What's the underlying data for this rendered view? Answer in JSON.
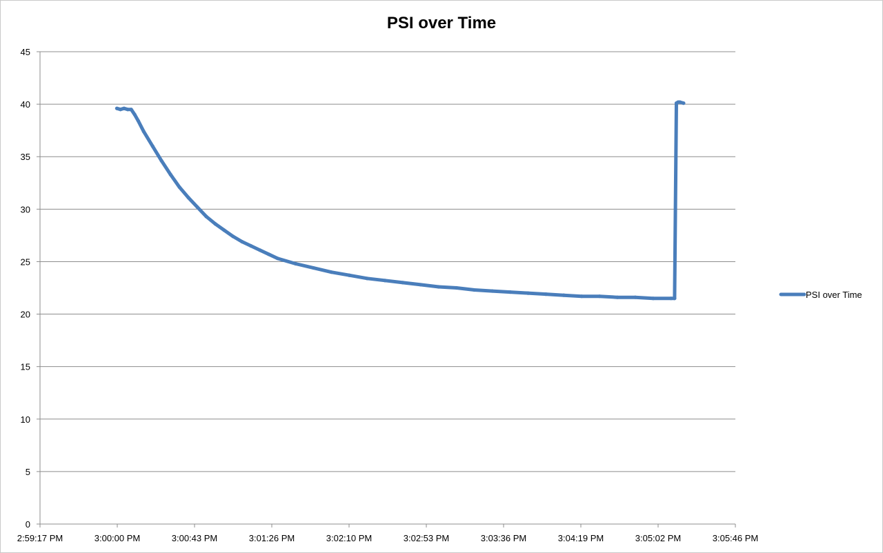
{
  "chart_data": {
    "type": "line",
    "title": "PSI over Time",
    "xlabel": "",
    "ylabel": "",
    "ylim": [
      0,
      45
    ],
    "xlim": [
      "2:59:17 PM",
      "3:05:46 PM"
    ],
    "y_ticks": [
      "0",
      "5",
      "10",
      "15",
      "20",
      "25",
      "30",
      "35",
      "40",
      "45"
    ],
    "x_ticks": [
      "2:59:17 PM",
      "3:00:00 PM",
      "3:00:43 PM",
      "3:01:26 PM",
      "3:02:10 PM",
      "3:02:53 PM",
      "3:03:36 PM",
      "3:04:19 PM",
      "3:05:02 PM",
      "3:05:46 PM"
    ],
    "grid": "horizontal",
    "legend_position": "right",
    "series": [
      {
        "name": "PSI over Time",
        "color": "#4a7ebb",
        "x": [
          "3:00:00 PM",
          "3:00:02 PM",
          "3:00:04 PM",
          "3:00:06 PM",
          "3:00:08 PM",
          "3:00:10 PM",
          "3:00:12 PM",
          "3:00:15 PM",
          "3:00:20 PM",
          "3:00:25 PM",
          "3:00:30 PM",
          "3:00:35 PM",
          "3:00:40 PM",
          "3:00:45 PM",
          "3:00:50 PM",
          "3:00:55 PM",
          "3:01:00 PM",
          "3:01:05 PM",
          "3:01:10 PM",
          "3:01:15 PM",
          "3:01:20 PM",
          "3:01:25 PM",
          "3:01:30 PM",
          "3:01:40 PM",
          "3:01:50 PM",
          "3:02:00 PM",
          "3:02:10 PM",
          "3:02:20 PM",
          "3:02:30 PM",
          "3:02:40 PM",
          "3:02:50 PM",
          "3:03:00 PM",
          "3:03:10 PM",
          "3:03:20 PM",
          "3:03:30 PM",
          "3:03:40 PM",
          "3:03:50 PM",
          "3:04:00 PM",
          "3:04:10 PM",
          "3:04:20 PM",
          "3:04:30 PM",
          "3:04:40 PM",
          "3:04:50 PM",
          "3:05:00 PM",
          "3:05:10 PM",
          "3:05:12 PM",
          "3:05:13 PM",
          "3:05:14 PM",
          "3:05:15 PM",
          "3:05:17 PM"
        ],
        "y": [
          39.6,
          39.5,
          39.6,
          39.5,
          39.5,
          39.0,
          38.4,
          37.4,
          36.0,
          34.6,
          33.3,
          32.1,
          31.1,
          30.2,
          29.3,
          28.6,
          28.0,
          27.4,
          26.9,
          26.5,
          26.1,
          25.7,
          25.3,
          24.8,
          24.4,
          24.0,
          23.7,
          23.4,
          23.2,
          23.0,
          22.8,
          22.6,
          22.5,
          22.3,
          22.2,
          22.1,
          22.0,
          21.9,
          21.8,
          21.7,
          21.7,
          21.6,
          21.6,
          21.5,
          21.5,
          21.5,
          40.1,
          40.2,
          40.2,
          40.1
        ]
      }
    ]
  }
}
